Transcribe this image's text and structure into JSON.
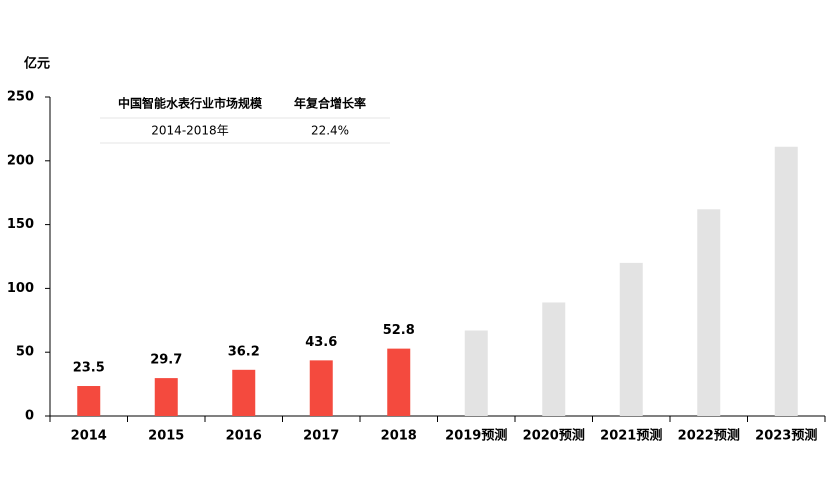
{
  "chart_data": {
    "type": "bar",
    "y_label": "亿元",
    "categories": [
      "2014",
      "2015",
      "2016",
      "2017",
      "2018",
      "2019预测",
      "2020预测",
      "2021预测",
      "2022预测",
      "2023预测"
    ],
    "values": [
      23.5,
      29.7,
      36.2,
      43.6,
      52.8,
      67,
      89,
      120,
      162,
      211
    ],
    "value_labels": [
      "23.5",
      "29.7",
      "36.2",
      "43.6",
      "52.8",
      null,
      null,
      null,
      null,
      null
    ],
    "colors": [
      "#f44a3e",
      "#f44a3e",
      "#f44a3e",
      "#f44a3e",
      "#f44a3e",
      "#e3e3e3",
      "#e3e3e3",
      "#e3e3e3",
      "#e3e3e3",
      "#e3e3e3"
    ],
    "ylim": [
      0,
      250
    ],
    "yticks": [
      0,
      50,
      100,
      150,
      200,
      250
    ],
    "table": {
      "header": [
        "中国智能水表行业市场规模",
        "年复合增长率"
      ],
      "rows": [
        [
          "2014-2018年",
          "22.4%"
        ]
      ]
    }
  }
}
